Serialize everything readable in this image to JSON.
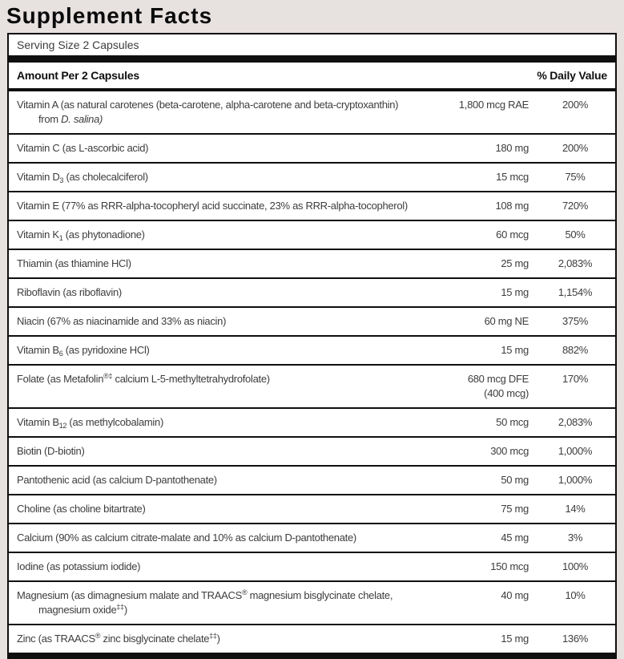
{
  "title": "Supplement Facts",
  "serving_size": "Serving Size 2 Capsules",
  "header": {
    "amount_label": "Amount Per 2 Capsules",
    "dv_label": "% Daily Value"
  },
  "colors": {
    "page_background": "#e7e1e0",
    "panel_background": "#ffffff",
    "rule_black": "#0f0f0f",
    "body_text": "#3d3d3d"
  },
  "rows": [
    {
      "name": [
        {
          "t": "Vitamin A (as natural carotenes (beta-carotene, alpha-carotene and beta-cryptoxanthin)"
        },
        {
          "br": true
        },
        {
          "t": "from "
        },
        {
          "t": "D. salina)",
          "style": "italic"
        }
      ],
      "amount": [
        {
          "t": "1,800 mcg RAE"
        }
      ],
      "dv": "200%"
    },
    {
      "name": [
        {
          "t": "Vitamin C (as L-ascorbic acid)"
        }
      ],
      "amount": [
        {
          "t": "180 mg"
        }
      ],
      "dv": "200%"
    },
    {
      "name": [
        {
          "t": "Vitamin D"
        },
        {
          "t": "3",
          "style": "sub"
        },
        {
          "t": " (as cholecalciferol)"
        }
      ],
      "amount": [
        {
          "t": "15 mcg"
        }
      ],
      "dv": "75%"
    },
    {
      "name": [
        {
          "t": "Vitamin E (77% as RRR-alpha-tocopheryl acid succinate, 23% as RRR-alpha-tocopherol)"
        }
      ],
      "amount": [
        {
          "t": "108 mg"
        }
      ],
      "dv": "720%"
    },
    {
      "name": [
        {
          "t": "Vitamin K"
        },
        {
          "t": "1",
          "style": "sub"
        },
        {
          "t": " (as phytonadione)"
        }
      ],
      "amount": [
        {
          "t": "60 mcg"
        }
      ],
      "dv": "50%"
    },
    {
      "name": [
        {
          "t": "Thiamin (as thiamine HCl)"
        }
      ],
      "amount": [
        {
          "t": "25 mg"
        }
      ],
      "dv": "2,083%"
    },
    {
      "name": [
        {
          "t": "Riboflavin (as riboflavin)"
        }
      ],
      "amount": [
        {
          "t": "15 mg"
        }
      ],
      "dv": "1,154%"
    },
    {
      "name": [
        {
          "t": "Niacin (67% as niacinamide and 33% as niacin)"
        }
      ],
      "amount": [
        {
          "t": "60 mg NE"
        }
      ],
      "dv": "375%"
    },
    {
      "name": [
        {
          "t": "Vitamin B"
        },
        {
          "t": "6",
          "style": "sub"
        },
        {
          "t": " (as pyridoxine HCl)"
        }
      ],
      "amount": [
        {
          "t": "15 mg"
        }
      ],
      "dv": "882%"
    },
    {
      "name": [
        {
          "t": "Folate (as Metafolin"
        },
        {
          "t": "®‡",
          "style": "sup"
        },
        {
          "t": " calcium L-5-methyltetrahydrofolate)"
        }
      ],
      "amount": [
        {
          "t": "680 mcg DFE"
        },
        {
          "br": true
        },
        {
          "t": "(400 mcg)"
        }
      ],
      "dv": "170%"
    },
    {
      "name": [
        {
          "t": "Vitamin B"
        },
        {
          "t": "12",
          "style": "sub"
        },
        {
          "t": " (as methylcobalamin)"
        }
      ],
      "amount": [
        {
          "t": "50 mcg"
        }
      ],
      "dv": "2,083%"
    },
    {
      "name": [
        {
          "t": "Biotin (D-biotin)"
        }
      ],
      "amount": [
        {
          "t": "300 mcg"
        }
      ],
      "dv": "1,000%"
    },
    {
      "name": [
        {
          "t": "Pantothenic acid (as calcium D-pantothenate)"
        }
      ],
      "amount": [
        {
          "t": "50 mg"
        }
      ],
      "dv": "1,000%"
    },
    {
      "name": [
        {
          "t": "Choline (as choline bitartrate)"
        }
      ],
      "amount": [
        {
          "t": "75 mg"
        }
      ],
      "dv": "14%"
    },
    {
      "name": [
        {
          "t": "Calcium (90% as calcium citrate-malate and 10% as calcium D-pantothenate)"
        }
      ],
      "amount": [
        {
          "t": "45 mg"
        }
      ],
      "dv": "3%"
    },
    {
      "name": [
        {
          "t": "Iodine (as potassium iodide)"
        }
      ],
      "amount": [
        {
          "t": "150 mcg"
        }
      ],
      "dv": "100%"
    },
    {
      "name": [
        {
          "t": "Magnesium (as dimagnesium malate and TRAACS"
        },
        {
          "t": "®",
          "style": "sup"
        },
        {
          "t": " magnesium bisglycinate chelate,"
        },
        {
          "br": true
        },
        {
          "t": "magnesium oxide"
        },
        {
          "t": "‡‡",
          "style": "sup"
        },
        {
          "t": ")"
        }
      ],
      "amount": [
        {
          "t": "40 mg"
        }
      ],
      "dv": "10%"
    },
    {
      "name": [
        {
          "t": "Zinc (as TRAACS"
        },
        {
          "t": "®",
          "style": "sup"
        },
        {
          "t": " zinc bisglycinate chelate"
        },
        {
          "t": "‡‡",
          "style": "sup"
        },
        {
          "t": ")"
        }
      ],
      "amount": [
        {
          "t": "15 mg"
        }
      ],
      "dv": "136%"
    }
  ]
}
